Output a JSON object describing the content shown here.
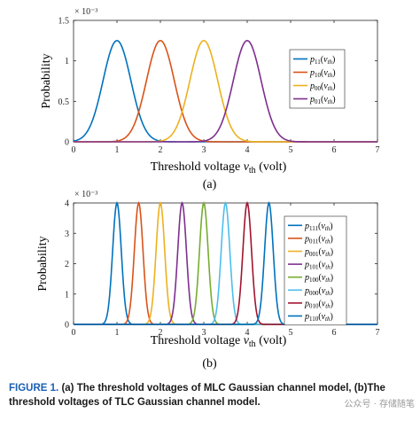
{
  "chart_data": [
    {
      "type": "line",
      "panel_label": "(a)",
      "xlabel": "Threshold voltage v_th (volt)",
      "ylabel": "Probability",
      "y_exponent": "× 10⁻³",
      "xlim": [
        0,
        7
      ],
      "ylim": [
        0,
        1.5
      ],
      "xticks": [
        0,
        1,
        2,
        3,
        4,
        5,
        6,
        7
      ],
      "yticks": [
        0,
        0.5,
        1,
        1.5
      ],
      "ytick_labels": [
        "0",
        "0.5",
        "1",
        "1.5"
      ],
      "grid": false,
      "legend_position": "top-right",
      "sigma": 0.32,
      "peak": 1.25,
      "series": [
        {
          "name": "p11(v_th)",
          "sub": "11",
          "mean": 1,
          "color": "#0072BD"
        },
        {
          "name": "p10(v_th)",
          "sub": "10",
          "mean": 2,
          "color": "#D95319"
        },
        {
          "name": "p00(v_th)",
          "sub": "00",
          "mean": 3,
          "color": "#EDB120"
        },
        {
          "name": "p01(v_th)",
          "sub": "01",
          "mean": 4,
          "color": "#7E2F8E"
        }
      ]
    },
    {
      "type": "line",
      "panel_label": "(b)",
      "xlabel": "Threshold voltage v_th (volt)",
      "ylabel": "Probability",
      "y_exponent": "× 10⁻³",
      "xlim": [
        0,
        7
      ],
      "ylim": [
        0,
        4
      ],
      "xticks": [
        0,
        1,
        2,
        3,
        4,
        5,
        6,
        7
      ],
      "yticks": [
        0,
        1,
        2,
        3,
        4
      ],
      "ytick_labels": [
        "0",
        "1",
        "2",
        "3",
        "4"
      ],
      "grid": false,
      "legend_position": "top-right",
      "sigma": 0.1,
      "peak": 4,
      "series": [
        {
          "name": "p111(v_th)",
          "sub": "111",
          "mean": 1.0,
          "color": "#0072BD"
        },
        {
          "name": "p011(v_th)",
          "sub": "011",
          "mean": 1.5,
          "color": "#D95319"
        },
        {
          "name": "p001(v_th)",
          "sub": "001",
          "mean": 2.0,
          "color": "#EDB120"
        },
        {
          "name": "p101(v_th)",
          "sub": "101",
          "mean": 2.5,
          "color": "#7E2F8E"
        },
        {
          "name": "p100(v_th)",
          "sub": "100",
          "mean": 3.0,
          "color": "#77AC30"
        },
        {
          "name": "p000(v_th)",
          "sub": "000",
          "mean": 3.5,
          "color": "#4DBEEE"
        },
        {
          "name": "p010(v_th)",
          "sub": "010",
          "mean": 4.0,
          "color": "#A2142F"
        },
        {
          "name": "p110(v_th)",
          "sub": "110",
          "mean": 4.5,
          "color": "#0072BD"
        }
      ]
    }
  ],
  "caption": {
    "figure_label": "FIGURE 1.",
    "text": "(a) The threshold voltages of MLC Gaussian channel model, (b)The threshold voltages of TLC Gaussian channel model."
  },
  "watermark": "公众号 · 存储随笔"
}
